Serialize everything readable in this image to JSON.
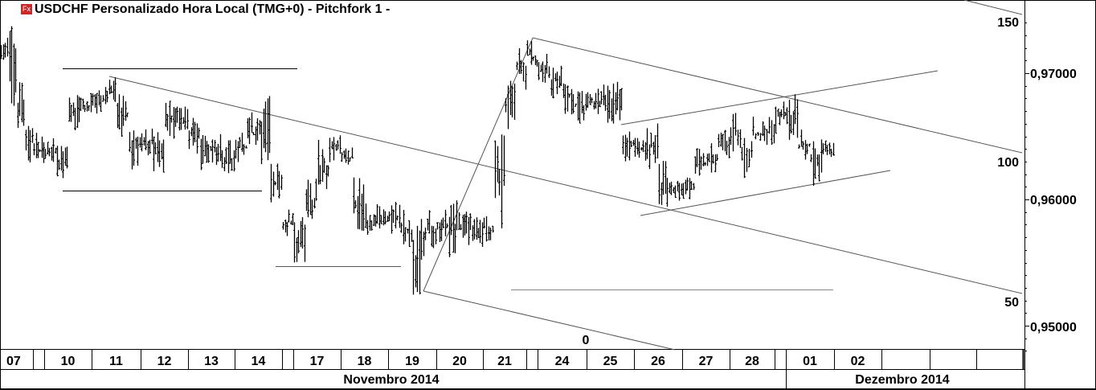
{
  "header": {
    "logo": "Fx",
    "title": "USDCHF Personalizado Hora Local (TMG+0)  -  Pitchfork 1 -"
  },
  "colors": {
    "background": "#ffffff",
    "bars": "#000000",
    "drawings": "#555555",
    "logo": "#c8282a"
  },
  "chart_data": {
    "type": "ohlc-bar",
    "symbol": "USDCHF",
    "y_axis": {
      "ticks": [
        "0,97000",
        "0,96000",
        "0,95000"
      ],
      "tick_values": [
        0.97,
        0.96,
        0.95
      ],
      "range": [
        0.9477,
        0.9748
      ]
    },
    "pitchfork_levels": {
      "labels": [
        "150",
        "100",
        "50",
        "0"
      ]
    },
    "x_axis": {
      "days": [
        {
          "label": "07",
          "month": "Novembro 2014",
          "segments": [
            [
              0.9729,
              0.9707
            ],
            [
              0.9739,
              0.9675
            ],
            [
              0.9701,
              0.9656
            ],
            [
              0.9662,
              0.9631
            ]
          ]
        },
        {
          "label": "",
          "month": "Novembro 2014",
          "segments": [
            [
              0.9656,
              0.9631
            ],
            [
              0.965,
              0.9628
            ]
          ]
        },
        {
          "label": "10",
          "month": "Novembro 2014",
          "segments": [
            [
              0.965,
              0.9631
            ],
            [
              0.9643,
              0.9618
            ],
            [
              0.9688,
              0.9656
            ],
            [
              0.9685,
              0.9666
            ]
          ]
        },
        {
          "label": "11",
          "month": "Novembro 2014",
          "segments": [
            [
              0.9688,
              0.9669
            ],
            [
              0.9697,
              0.9675
            ],
            [
              0.9688,
              0.965
            ],
            [
              0.9662,
              0.9624
            ]
          ]
        },
        {
          "label": "12",
          "month": "Novembro 2014",
          "segments": [
            [
              0.9662,
              0.9631
            ],
            [
              0.9656,
              0.9624
            ],
            [
              0.9678,
              0.965
            ],
            [
              0.9675,
              0.9656
            ]
          ]
        },
        {
          "label": "13",
          "month": "Novembro 2014",
          "segments": [
            [
              0.9669,
              0.9637
            ],
            [
              0.9656,
              0.9624
            ],
            [
              0.9653,
              0.9627
            ],
            [
              0.9647,
              0.9621
            ]
          ]
        },
        {
          "label": "14",
          "month": "Novembro 2014",
          "segments": [
            [
              0.9653,
              0.9631
            ],
            [
              0.9669,
              0.964
            ],
            [
              0.9685,
              0.9631
            ],
            [
              0.9631,
              0.9599
            ]
          ]
        },
        {
          "label": "",
          "month": "Novembro 2014",
          "segments": [
            [
              0.9596,
              0.9567
            ],
            [
              0.9592,
              0.9573
            ]
          ]
        },
        {
          "label": "17",
          "month": "Novembro 2014",
          "segments": [
            [
              0.9586,
              0.9551
            ],
            [
              0.9618,
              0.9583
            ],
            [
              0.965,
              0.9605
            ],
            [
              0.9653,
              0.9631
            ]
          ]
        },
        {
          "label": "18",
          "month": "Novembro 2014",
          "segments": [
            [
              0.9643,
              0.9624
            ],
            [
              0.9618,
              0.9573
            ],
            [
              0.9599,
              0.957
            ],
            [
              0.9599,
              0.9576
            ]
          ]
        },
        {
          "label": "19",
          "month": "Novembro 2014",
          "segments": [
            [
              0.9599,
              0.9573
            ],
            [
              0.9592,
              0.9561
            ],
            [
              0.9586,
              0.9529
            ],
            [
              0.9592,
              0.9561
            ]
          ]
        },
        {
          "label": "20",
          "month": "Novembro 2014",
          "segments": [
            [
              0.9592,
              0.9567
            ],
            [
              0.9602,
              0.9554
            ],
            [
              0.9592,
              0.9564
            ],
            [
              0.9586,
              0.9564
            ]
          ]
        },
        {
          "label": "21",
          "month": "Novembro 2014",
          "segments": [
            [
              0.9589,
              0.9567
            ],
            [
              0.9656,
              0.958
            ],
            [
              0.9694,
              0.9656
            ],
            [
              0.972,
              0.9688
            ]
          ]
        },
        {
          "label": "",
          "month": "Novembro 2014",
          "segments": [
            [
              0.9728,
              0.9707
            ],
            [
              0.972,
              0.9701
            ]
          ]
        },
        {
          "label": "24",
          "month": "Novembro 2014",
          "segments": [
            [
              0.9717,
              0.9694
            ],
            [
              0.9707,
              0.9682
            ],
            [
              0.9694,
              0.9669
            ],
            [
              0.9688,
              0.9662
            ]
          ]
        },
        {
          "label": "25",
          "month": "Novembro 2014",
          "segments": [
            [
              0.9688,
              0.9669
            ],
            [
              0.9691,
              0.9662
            ],
            [
              0.9696,
              0.9656
            ],
            [
              0.9656,
              0.9631
            ]
          ]
        },
        {
          "label": "26",
          "month": "Novembro 2014",
          "segments": [
            [
              0.965,
              0.9631
            ],
            [
              0.9662,
              0.9624
            ],
            [
              0.9631,
              0.9596
            ],
            [
              0.9615,
              0.9599
            ]
          ]
        },
        {
          "label": "27",
          "month": "Novembro 2014",
          "segments": [
            [
              0.9618,
              0.9599
            ],
            [
              0.9643,
              0.9615
            ],
            [
              0.9647,
              0.9621
            ],
            [
              0.9656,
              0.9634
            ]
          ]
        },
        {
          "label": "28",
          "month": "Novembro 2014",
          "segments": [
            [
              0.9669,
              0.9637
            ],
            [
              0.965,
              0.9618
            ],
            [
              0.9666,
              0.964
            ],
            [
              0.9669,
              0.9643
            ]
          ]
        },
        {
          "label": "",
          "month": "Novembro 2014",
          "segments": [
            [
              0.9682,
              0.9653
            ],
            [
              0.9678,
              0.9662
            ]
          ]
        },
        {
          "label": "01",
          "month": "Dezembro 2014",
          "segments": [
            [
              0.9685,
              0.965
            ],
            [
              0.9656,
              0.9631
            ],
            [
              0.965,
              0.9613
            ],
            [
              0.9647,
              0.9634
            ]
          ]
        },
        {
          "label": "02",
          "month": "Dezembro 2014",
          "segments": []
        },
        {
          "label": "",
          "month": "Dezembro 2014",
          "segments": []
        },
        {
          "label": "",
          "month": "Dezembro 2014",
          "segments": []
        },
        {
          "label": "",
          "month": "Dezembro 2014",
          "segments": []
        }
      ],
      "months": [
        "Novembro 2014",
        "Dezembro 2014"
      ]
    }
  }
}
